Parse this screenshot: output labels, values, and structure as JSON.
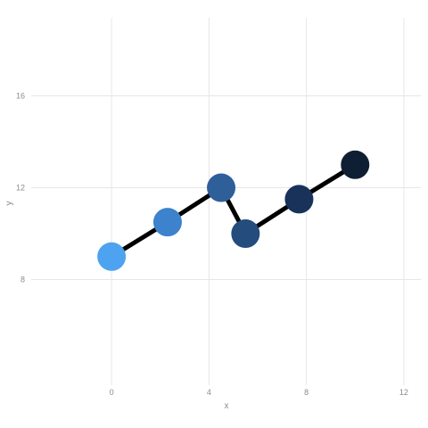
{
  "chart_data": {
    "type": "line",
    "x": [
      0,
      2.3,
      4.5,
      5.5,
      7.7,
      10
    ],
    "series": [
      {
        "values": [
          9,
          10.5,
          12,
          10,
          11.5,
          13
        ],
        "line_color": "#000000",
        "point_colors": [
          "#4da3f0",
          "#3c82cd",
          "#2f5f99",
          "#244c7c",
          "#18325a",
          "#0f1f33"
        ]
      }
    ],
    "xlabel": "x",
    "ylabel": "y",
    "xlim": [
      -3.3,
      12.7
    ],
    "ylim": [
      3.4,
      19.4
    ],
    "x_ticks": [
      0,
      4,
      8,
      12
    ],
    "y_ticks": [
      8,
      12,
      16
    ],
    "grid": true
  }
}
